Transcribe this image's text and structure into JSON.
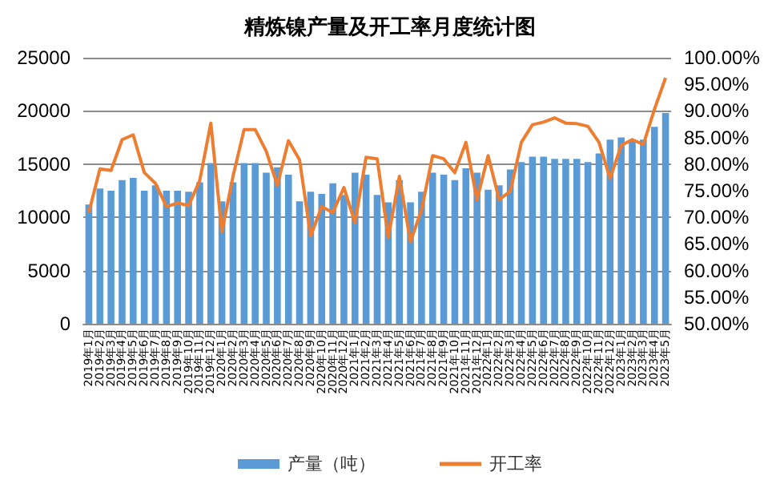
{
  "chart_data": {
    "type": "bar",
    "title": "精炼镍产量及开工率月度统计图",
    "categories": [
      "2019年1月",
      "2019年2月",
      "2019年3月",
      "2019年4月",
      "2019年5月",
      "2019年6月",
      "2019年7月",
      "2019年8月",
      "2019年9月",
      "2019年10月",
      "2019年11月",
      "2019年12月",
      "2020年1月",
      "2020年2月",
      "2020年3月",
      "2020年4月",
      "2020年5月",
      "2020年6月",
      "2020年7月",
      "2020年8月",
      "2020年9月",
      "2020年10月",
      "2020年11月",
      "2020年12月",
      "2021年1月",
      "2021年2月",
      "2021年3月",
      "2021年4月",
      "2021年5月",
      "2021年6月",
      "2021年7月",
      "2021年8月",
      "2021年9月",
      "2021年10月",
      "2021年11月",
      "2021年12月",
      "2022年1月",
      "2022年2月",
      "2022年3月",
      "2022年4月",
      "2022年5月",
      "2022年6月",
      "2022年7月",
      "2022年8月",
      "2022年9月",
      "2022年10月",
      "2022年11月",
      "2022年12月",
      "2023年1月",
      "2023年2月",
      "2023年3月",
      "2023年4月",
      "2023年5月"
    ],
    "series": [
      {
        "name": "产量（吨）",
        "color": "#5b9bd5",
        "values": [
          11200,
          12700,
          12500,
          13500,
          13700,
          12500,
          13000,
          12500,
          12500,
          12400,
          13300,
          15100,
          11500,
          13300,
          15100,
          15100,
          14200,
          14700,
          14000,
          11500,
          12400,
          12200,
          13200,
          12100,
          14200,
          14000,
          12100,
          11400,
          13500,
          11400,
          12400,
          14200,
          14000,
          13500,
          14600,
          14200,
          12600,
          13000,
          14500,
          15200,
          15700,
          15700,
          15500,
          15500,
          15500,
          15200,
          16000,
          17300,
          17500,
          17300,
          17300,
          18500,
          19800
        ]
      },
      {
        "name": "开工率",
        "type": "line",
        "axis": "y2",
        "color": "#ed7d31",
        "values": [
          70.9,
          79.1,
          78.8,
          84.6,
          85.5,
          78.4,
          76.4,
          72.0,
          72.7,
          72.2,
          76.9,
          87.7,
          67.3,
          77.7,
          86.5,
          86.5,
          82.4,
          76.0,
          84.4,
          80.8,
          66.5,
          72.0,
          70.9,
          75.6,
          69.0,
          81.3,
          81.0,
          66.2,
          77.7,
          65.4,
          71.4,
          81.6,
          81.0,
          78.4,
          84.1,
          73.3,
          81.6,
          73.3,
          74.9,
          84.1,
          87.4,
          87.9,
          88.7,
          87.7,
          87.6,
          87.1,
          84.1,
          77.3,
          83.5,
          84.6,
          83.7,
          90.3,
          96.2
        ]
      }
    ],
    "ylim": [
      0,
      25000
    ],
    "yticks": [
      0,
      5000,
      10000,
      15000,
      20000,
      25000
    ],
    "y2lim": [
      50,
      100
    ],
    "y2ticks": [
      {
        "value": 50,
        "label": "50.00%"
      },
      {
        "value": 55,
        "label": "55.00%"
      },
      {
        "value": 60,
        "label": "60.00%"
      },
      {
        "value": 65,
        "label": "65.00%"
      },
      {
        "value": 70,
        "label": "70.00%"
      },
      {
        "value": 75,
        "label": "75.00%"
      },
      {
        "value": 80,
        "label": "80.00%"
      },
      {
        "value": 85,
        "label": "85.00%"
      },
      {
        "value": 90,
        "label": "90.00%"
      },
      {
        "value": 95,
        "label": "95.00%"
      },
      {
        "value": 100,
        "label": "100.00%"
      }
    ],
    "grid": "y",
    "legend": "bottom",
    "marker": "none",
    "line_style": "solid"
  }
}
